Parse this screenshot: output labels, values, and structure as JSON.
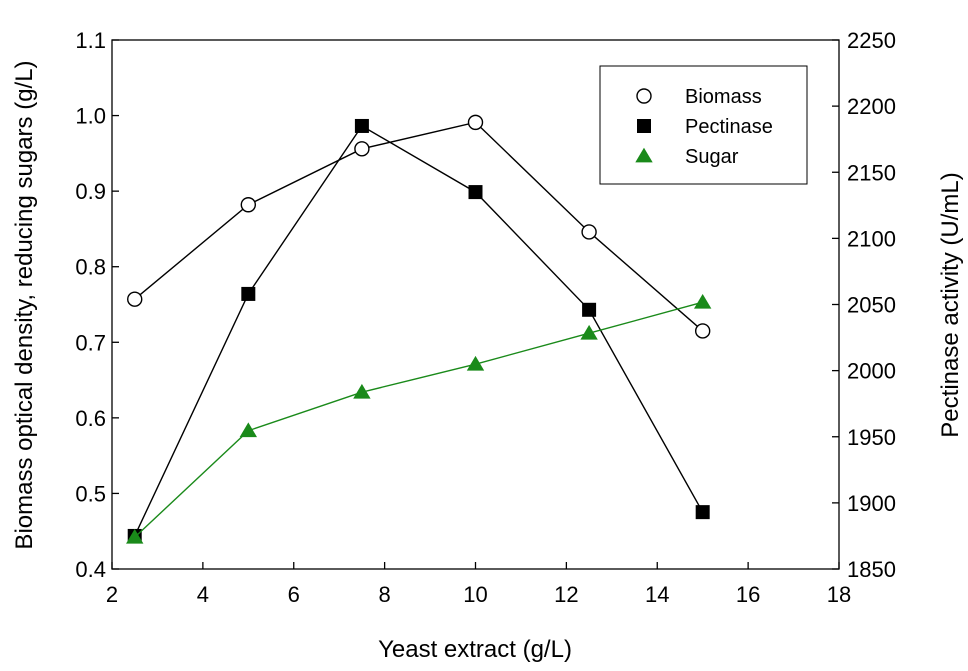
{
  "chart_data": {
    "type": "line",
    "xlabel": "Yeast extract (g/L)",
    "ylabel": "Biomass optical density, reducing sugars (g/L)",
    "y2label": "Pectinase activity (U/mL)",
    "xlim": [
      2,
      18
    ],
    "xticks": [
      "2",
      "4",
      "6",
      "8",
      "10",
      "12",
      "14",
      "16",
      "18"
    ],
    "ylim": [
      0.4,
      1.1
    ],
    "yticks": [
      "0.4",
      "0.5",
      "0.6",
      "0.7",
      "0.8",
      "0.9",
      "1.0",
      "1.1"
    ],
    "y2lim": [
      1850,
      2250
    ],
    "y2ticks": [
      "1850",
      "1900",
      "1950",
      "2000",
      "2050",
      "2100",
      "2150",
      "2200",
      "2250"
    ],
    "grid": false,
    "legend_position": "top-right",
    "series": [
      {
        "name": "Biomass",
        "axis": "left",
        "marker": "open-circle",
        "color": "#000000",
        "points": [
          [
            2.5,
            0.757
          ],
          [
            5,
            0.882
          ],
          [
            7.5,
            0.956
          ],
          [
            10,
            0.991
          ],
          [
            12.5,
            0.846
          ],
          [
            15,
            0.715
          ]
        ]
      },
      {
        "name": "Pectinase",
        "axis": "right",
        "marker": "filled-square",
        "color": "#000000",
        "points": [
          [
            2.5,
            1875
          ],
          [
            5,
            2058
          ],
          [
            7.5,
            2185
          ],
          [
            10,
            2135
          ],
          [
            12.5,
            2046
          ],
          [
            15,
            1893
          ]
        ]
      },
      {
        "name": "Sugar",
        "axis": "left",
        "marker": "filled-triangle",
        "color": "#1a8a1a",
        "points": [
          [
            2.5,
            0.442
          ],
          [
            5,
            0.583
          ],
          [
            7.5,
            0.634
          ],
          [
            10,
            0.671
          ],
          [
            12.5,
            0.712
          ],
          [
            15,
            0.753
          ]
        ]
      }
    ]
  }
}
